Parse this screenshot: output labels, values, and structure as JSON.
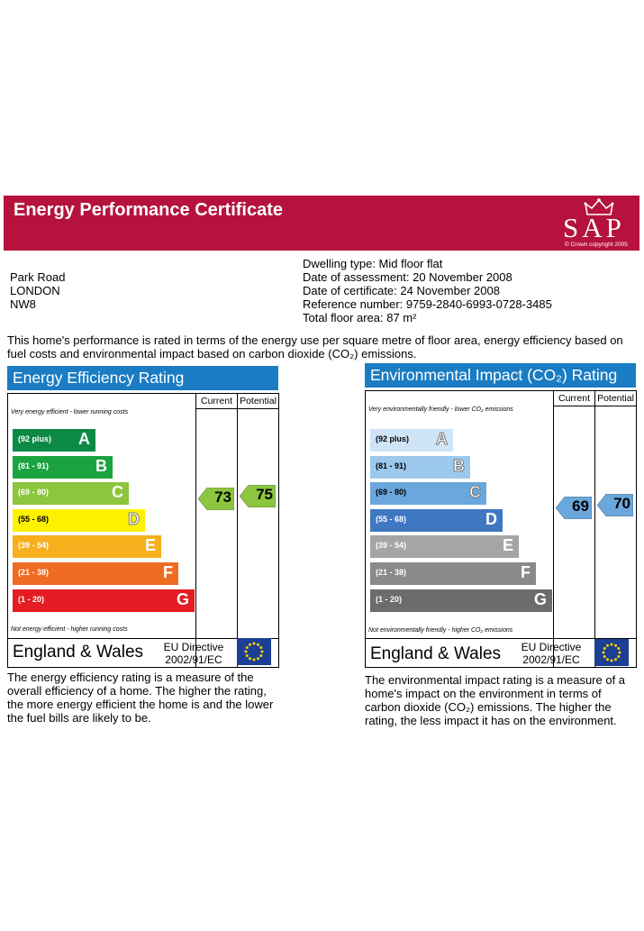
{
  "header": {
    "title": "Energy Performance Certificate",
    "logo_text": "SAP",
    "copyright": "© Crown copyright 2005"
  },
  "address": {
    "line1": "Park Road",
    "line2": "LONDON",
    "line3": "NW8"
  },
  "details": {
    "dwelling_type": "Dwelling type: Mid floor flat",
    "assessment": "Date of assessment: 20 November 2008",
    "certificate": "Date of certificate: 24 November 2008",
    "reference": "Reference number: 9759-2840-6993-0728-3485",
    "floor_area": "Total floor area: 87 m²"
  },
  "intro": "This home's performance is rated in terms of the energy use per square metre of floor area, energy efficiency based on fuel costs and environmental impact based on carbon dioxide (CO₂) emissions.",
  "efficiency": {
    "title": "Energy Efficiency Rating",
    "col_current": "Current",
    "col_potential": "Potential",
    "top_note": "Very energy efficient - lower running costs",
    "bottom_note": "Not energy efficient - higher running costs",
    "bands": [
      {
        "range": "(92 plus)",
        "letter": "A",
        "color": "#0c8a45"
      },
      {
        "range": "(81 - 91)",
        "letter": "B",
        "color": "#1ba33f"
      },
      {
        "range": "(69 - 80)",
        "letter": "C",
        "color": "#8cc63e"
      },
      {
        "range": "(55 - 68)",
        "letter": "D",
        "color": "#fff200"
      },
      {
        "range": "(39 - 54)",
        "letter": "E",
        "color": "#f7af1d"
      },
      {
        "range": "(21 - 38)",
        "letter": "F",
        "color": "#ef6c23"
      },
      {
        "range": "(1 - 20)",
        "letter": "G",
        "color": "#e31d23"
      }
    ],
    "current": "73",
    "potential": "75",
    "current_color": "#8cc63e",
    "potential_color": "#8cc63e",
    "region": "England & Wales",
    "directive": "EU Directive",
    "directive_code": "2002/91/EC",
    "description": "The energy efficiency rating is a measure of the overall efficiency of a home. The higher the rating, the more energy efficient the home is and the lower the fuel bills are likely to be."
  },
  "environment": {
    "title": "Environmental Impact (CO₂) Rating",
    "col_current": "Current",
    "col_potential": "Potential",
    "top_note": "Very environmentally friendly - lower CO₂ emissions",
    "bottom_note": "Not environmentally friendly - higher CO₂ emissions",
    "bands": [
      {
        "range": "(92 plus)",
        "letter": "A",
        "color": "#cfe4f6"
      },
      {
        "range": "(81 - 91)",
        "letter": "B",
        "color": "#9cc8ec"
      },
      {
        "range": "(69 - 80)",
        "letter": "C",
        "color": "#6aa7dc"
      },
      {
        "range": "(55 - 68)",
        "letter": "D",
        "color": "#3f78c2"
      },
      {
        "range": "(39 - 54)",
        "letter": "E",
        "color": "#a5a5a5"
      },
      {
        "range": "(21 - 38)",
        "letter": "F",
        "color": "#8a8a8a"
      },
      {
        "range": "(1 - 20)",
        "letter": "G",
        "color": "#6c6c6c"
      }
    ],
    "current": "69",
    "potential": "70",
    "current_color": "#6aa7dc",
    "potential_color": "#6aa7dc",
    "region": "England & Wales",
    "directive": "EU Directive",
    "directive_code": "2002/91/EC",
    "description": "The environmental impact rating is a measure of a home's impact on the environment in terms of carbon dioxide (CO₂) emissions. The higher the rating, the less impact it has on the environment."
  }
}
